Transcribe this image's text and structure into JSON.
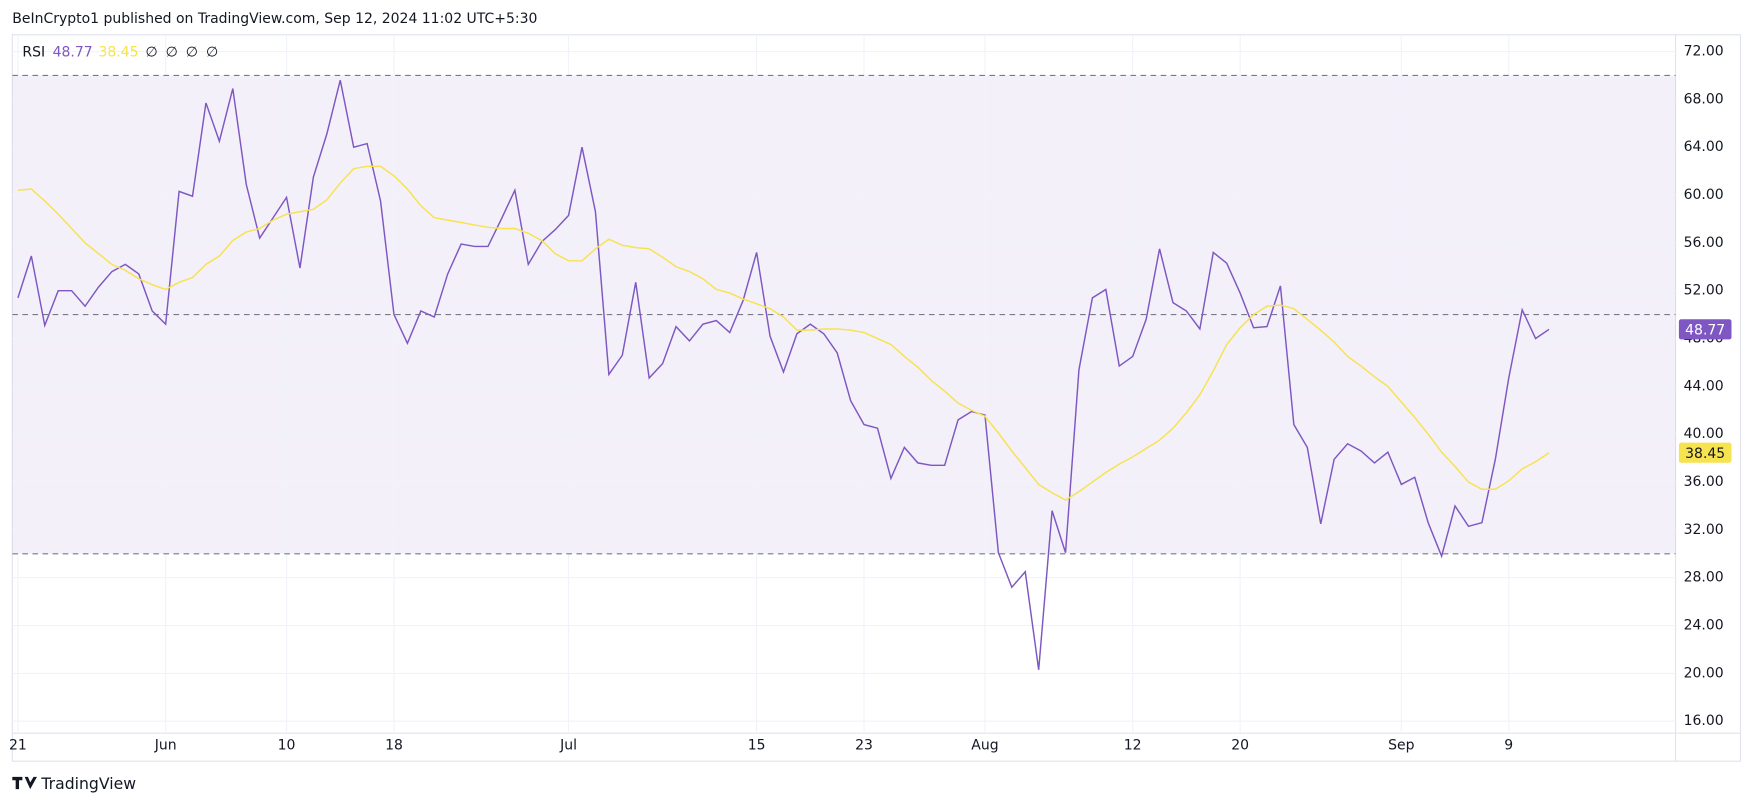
{
  "header": "BeInCrypto1 published on TradingView.com, Sep 12, 2024 11:02 UTC+5:30",
  "footer": "TradingView",
  "chart_data": {
    "type": "line",
    "title": "RSI",
    "legend_extras": [
      "∅",
      "∅",
      "∅",
      "∅"
    ],
    "categories": [
      "21",
      null,
      null,
      null,
      null,
      null,
      null,
      null,
      null,
      null,
      null,
      "Jun",
      null,
      null,
      null,
      null,
      null,
      null,
      null,
      null,
      "10",
      null,
      null,
      null,
      null,
      null,
      null,
      null,
      "18",
      null,
      null,
      null,
      null,
      null,
      null,
      null,
      null,
      null,
      null,
      null,
      null,
      "Jul",
      null,
      null,
      null,
      null,
      null,
      null,
      null,
      null,
      null,
      null,
      null,
      null,
      null,
      "15",
      null,
      null,
      null,
      null,
      null,
      null,
      null,
      "23",
      null,
      null,
      null,
      null,
      null,
      null,
      null,
      null,
      "Aug",
      null,
      null,
      null,
      null,
      null,
      null,
      null,
      null,
      null,
      null,
      "12",
      null,
      null,
      null,
      null,
      null,
      null,
      null,
      "20",
      null,
      null,
      null,
      null,
      null,
      null,
      null,
      null,
      null,
      null,
      null,
      "Sep",
      null,
      null,
      null,
      null,
      null,
      null,
      null,
      "9",
      null,
      null,
      null
    ],
    "series": [
      {
        "color": "#7e57c2",
        "values": [
          51.4,
          54.9,
          49.1,
          52.0,
          52.0,
          50.7,
          52.3,
          53.6,
          54.2,
          53.4,
          50.3,
          49.2,
          60.3,
          59.9,
          67.7,
          64.5,
          68.9,
          60.9,
          56.4,
          58.1,
          59.8,
          53.9,
          61.5,
          65.1,
          69.6,
          64.0,
          64.3,
          59.5,
          50.0,
          47.6,
          50.3,
          49.8,
          53.4,
          55.9,
          55.7,
          55.7,
          58.0,
          60.4,
          54.2,
          56.1,
          57.1,
          58.3,
          64.0,
          58.6,
          45.0,
          46.6,
          52.7,
          44.7,
          45.9,
          49.0,
          47.8,
          49.2,
          49.5,
          48.5,
          51.2,
          55.2,
          48.2,
          45.2,
          48.4,
          49.2,
          48.4,
          46.8,
          42.8,
          40.8,
          40.5,
          36.3,
          38.9,
          37.6,
          37.4,
          37.4,
          41.2,
          41.9,
          41.6,
          30.1,
          27.2,
          28.5,
          20.3,
          33.6,
          30.1,
          45.4,
          51.4,
          52.1,
          45.7,
          46.5,
          49.6,
          55.5,
          51.0,
          50.3,
          48.8,
          55.2,
          54.3,
          51.8,
          48.9,
          49.0,
          52.4,
          40.8,
          38.9,
          32.5,
          37.9,
          39.2,
          38.6,
          37.6,
          38.5,
          35.8,
          36.4,
          32.6,
          29.8,
          34.0,
          32.3,
          32.6,
          37.9,
          44.7,
          50.4,
          48.0,
          48.77
        ]
      },
      {
        "color": "#f7e24f",
        "badge_text_color": "#131722",
        "values": [
          60.4,
          60.5,
          59.5,
          58.4,
          57.2,
          56.0,
          55.1,
          54.2,
          53.7,
          53.0,
          52.5,
          52.1,
          52.7,
          53.1,
          54.2,
          54.9,
          56.2,
          56.9,
          57.2,
          57.9,
          58.4,
          58.6,
          58.8,
          59.6,
          61.0,
          62.2,
          62.4,
          62.4,
          61.6,
          60.5,
          59.1,
          58.1,
          57.9,
          57.7,
          57.5,
          57.3,
          57.2,
          57.2,
          56.8,
          56.2,
          55.1,
          54.5,
          54.5,
          55.5,
          56.3,
          55.8,
          55.6,
          55.5,
          54.8,
          54.0,
          53.6,
          53.0,
          52.1,
          51.8,
          51.3,
          50.9,
          50.5,
          49.8,
          48.7,
          48.7,
          48.8,
          48.8,
          48.7,
          48.5,
          48.0,
          47.5,
          46.5,
          45.6,
          44.5,
          43.6,
          42.6,
          42.0,
          41.5,
          40.1,
          38.6,
          37.2,
          35.8,
          35.1,
          34.5,
          35.2,
          36.0,
          36.8,
          37.5,
          38.1,
          38.8,
          39.5,
          40.5,
          41.8,
          43.3,
          45.3,
          47.5,
          48.9,
          50.0,
          50.7,
          50.8,
          50.5,
          49.6,
          48.7,
          47.7,
          46.5,
          45.7,
          44.8,
          44.0,
          42.7,
          41.4,
          40.0,
          38.5,
          37.3,
          36.0,
          35.4,
          35.4,
          36.1,
          37.1,
          37.7,
          38.45
        ]
      }
    ],
    "ylim": [
      15,
      73.4
    ],
    "yticks": [
      {
        "value": 16,
        "label": "16.00"
      },
      {
        "value": 20,
        "label": "20.00"
      },
      {
        "value": 24,
        "label": "24.00"
      },
      {
        "value": 28,
        "label": "28.00"
      },
      {
        "value": 32,
        "label": "32.00"
      },
      {
        "value": 36,
        "label": "36.00"
      },
      {
        "value": 40,
        "label": "40.00"
      },
      {
        "value": 44,
        "label": "44.00"
      },
      {
        "value": 48,
        "label": "48.00"
      },
      {
        "value": 52,
        "label": "52.00"
      },
      {
        "value": 56,
        "label": "56.00"
      },
      {
        "value": 60,
        "label": "60.00"
      },
      {
        "value": 64,
        "label": "64.00"
      },
      {
        "value": 68,
        "label": "68.00"
      },
      {
        "value": 72,
        "label": "72.00"
      }
    ],
    "hlines": [
      70,
      50,
      30
    ],
    "band_color": "#7e57c2",
    "grid": true
  }
}
